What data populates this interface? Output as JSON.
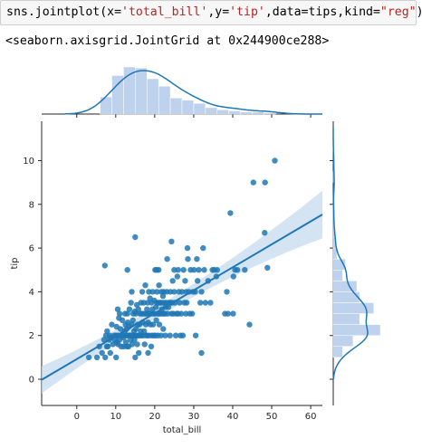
{
  "cell": {
    "code": {
      "fn": "sns.jointplot(x=",
      "x_val": "'total_bill'",
      "sep1": ",y=",
      "y_val": "'tip'",
      "sep2": ",data=tips,kind=",
      "kind_val": "\"reg\"",
      "close": ")"
    },
    "output": "<seaborn.axisgrid.JointGrid at 0x244900ce288>"
  },
  "colors": {
    "series": "#1f77b4",
    "hist_fill": "#aec7e8",
    "band": "#c6dbef"
  },
  "chart_data": {
    "type": "scatter",
    "xlabel": "total_bill",
    "ylabel": "tip",
    "xlim": [
      -9,
      63
    ],
    "ylim": [
      -1.2,
      11.8
    ],
    "xticks": [
      0,
      10,
      20,
      30,
      40,
      50,
      60
    ],
    "yticks": [
      0,
      2,
      4,
      6,
      8,
      10
    ],
    "regression": {
      "intercept": 0.92,
      "slope": 0.105
    },
    "points": [
      [
        3.1,
        1.0
      ],
      [
        5.2,
        1.0
      ],
      [
        5.8,
        1.5
      ],
      [
        6.5,
        1.2
      ],
      [
        7.0,
        1.8
      ],
      [
        7.3,
        1.0
      ],
      [
        7.5,
        2.0
      ],
      [
        7.7,
        1.5
      ],
      [
        7.8,
        2.2
      ],
      [
        8.0,
        1.5
      ],
      [
        8.3,
        1.8
      ],
      [
        8.5,
        2.0
      ],
      [
        8.6,
        1.2
      ],
      [
        8.8,
        1.9
      ],
      [
        9.0,
        2.5
      ],
      [
        9.3,
        1.6
      ],
      [
        9.6,
        2.0
      ],
      [
        9.8,
        1.8
      ],
      [
        10.0,
        2.0
      ],
      [
        10.1,
        1.0
      ],
      [
        10.2,
        2.4
      ],
      [
        10.3,
        1.7
      ],
      [
        10.4,
        2.0
      ],
      [
        10.5,
        3.2
      ],
      [
        10.6,
        1.6
      ],
      [
        10.7,
        2.0
      ],
      [
        10.8,
        2.8
      ],
      [
        11.0,
        3.0
      ],
      [
        11.0,
        1.8
      ],
      [
        11.2,
        2.3
      ],
      [
        11.4,
        1.5
      ],
      [
        11.5,
        2.0
      ],
      [
        11.7,
        2.7
      ],
      [
        11.9,
        1.9
      ],
      [
        12.0,
        2.0
      ],
      [
        12.1,
        1.5
      ],
      [
        12.3,
        2.2
      ],
      [
        12.4,
        3.0
      ],
      [
        12.5,
        2.5
      ],
      [
        12.6,
        1.7
      ],
      [
        12.7,
        2.0
      ],
      [
        12.8,
        2.3
      ],
      [
        12.9,
        1.5
      ],
      [
        13.0,
        2.0
      ],
      [
        13.0,
        3.0
      ],
      [
        13.1,
        2.6
      ],
      [
        13.2,
        2.0
      ],
      [
        13.3,
        1.5
      ],
      [
        13.4,
        2.4
      ],
      [
        13.5,
        3.2
      ],
      [
        13.6,
        2.0
      ],
      [
        13.7,
        2.0
      ],
      [
        13.8,
        1.8
      ],
      [
        13.9,
        3.5
      ],
      [
        14.0,
        2.0
      ],
      [
        14.1,
        2.5
      ],
      [
        14.2,
        1.6
      ],
      [
        14.3,
        2.0
      ],
      [
        14.4,
        2.7
      ],
      [
        14.5,
        3.0
      ],
      [
        14.6,
        2.0
      ],
      [
        14.7,
        2.2
      ],
      [
        14.8,
        1.8
      ],
      [
        14.9,
        3.1
      ],
      [
        15.0,
        2.0
      ],
      [
        15.0,
        1.0
      ],
      [
        15.1,
        3.0
      ],
      [
        15.2,
        2.3
      ],
      [
        15.3,
        2.0
      ],
      [
        15.4,
        3.4
      ],
      [
        15.5,
        1.6
      ],
      [
        15.6,
        2.5
      ],
      [
        15.7,
        2.0
      ],
      [
        15.8,
        3.2
      ],
      [
        15.9,
        1.2
      ],
      [
        16.0,
        2.0
      ],
      [
        16.1,
        2.5
      ],
      [
        16.2,
        3.0
      ],
      [
        16.3,
        2.0
      ],
      [
        16.4,
        2.2
      ],
      [
        16.5,
        3.5
      ],
      [
        16.6,
        3.0
      ],
      [
        16.7,
        2.0
      ],
      [
        16.8,
        4.0
      ],
      [
        16.9,
        2.6
      ],
      [
        17.0,
        3.0
      ],
      [
        17.1,
        2.0
      ],
      [
        17.2,
        3.5
      ],
      [
        17.3,
        2.2
      ],
      [
        17.4,
        1.6
      ],
      [
        17.5,
        3.0
      ],
      [
        17.6,
        4.3
      ],
      [
        17.7,
        2.5
      ],
      [
        17.8,
        3.0
      ],
      [
        17.9,
        2.0
      ],
      [
        18.0,
        3.2
      ],
      [
        18.1,
        2.0
      ],
      [
        18.2,
        3.5
      ],
      [
        18.3,
        2.6
      ],
      [
        18.4,
        3.0
      ],
      [
        18.5,
        4.0
      ],
      [
        18.6,
        2.0
      ],
      [
        18.7,
        3.0
      ],
      [
        18.8,
        3.7
      ],
      [
        18.9,
        2.5
      ],
      [
        19.0,
        3.0
      ],
      [
        19.1,
        1.5
      ],
      [
        19.2,
        3.5
      ],
      [
        19.3,
        2.0
      ],
      [
        19.4,
        3.2
      ],
      [
        19.5,
        4.0
      ],
      [
        19.6,
        2.5
      ],
      [
        19.7,
        3.0
      ],
      [
        19.8,
        2.0
      ],
      [
        19.9,
        3.6
      ],
      [
        20.0,
        3.0
      ],
      [
        20.1,
        5.0
      ],
      [
        20.2,
        2.0
      ],
      [
        20.3,
        3.3
      ],
      [
        20.4,
        2.7
      ],
      [
        20.5,
        3.5
      ],
      [
        20.6,
        4.0
      ],
      [
        20.7,
        3.0
      ],
      [
        20.8,
        2.0
      ],
      [
        20.9,
        3.5
      ],
      [
        21.0,
        3.0
      ],
      [
        21.0,
        5.0
      ],
      [
        21.1,
        4.3
      ],
      [
        21.2,
        2.5
      ],
      [
        21.3,
        3.5
      ],
      [
        21.4,
        3.0
      ],
      [
        21.5,
        3.5
      ],
      [
        21.6,
        2.0
      ],
      [
        21.7,
        4.0
      ],
      [
        21.8,
        3.2
      ],
      [
        21.9,
        3.0
      ],
      [
        22.0,
        3.5
      ],
      [
        22.1,
        3.8
      ],
      [
        22.2,
        2.3
      ],
      [
        22.3,
        4.0
      ],
      [
        22.4,
        3.0
      ],
      [
        22.5,
        3.5
      ],
      [
        22.6,
        3.0
      ],
      [
        22.7,
        2.0
      ],
      [
        22.8,
        3.3
      ],
      [
        23.0,
        3.5
      ],
      [
        23.1,
        4.0
      ],
      [
        23.2,
        5.5
      ],
      [
        23.3,
        3.0
      ],
      [
        23.5,
        3.3
      ],
      [
        23.7,
        3.5
      ],
      [
        23.9,
        2.0
      ],
      [
        24.0,
        4.0
      ],
      [
        24.1,
        3.5
      ],
      [
        24.3,
        3.0
      ],
      [
        24.5,
        3.5
      ],
      [
        24.6,
        4.5
      ],
      [
        24.8,
        3.0
      ],
      [
        25.0,
        4.0
      ],
      [
        25.0,
        5.0
      ],
      [
        25.2,
        3.5
      ],
      [
        25.4,
        2.0
      ],
      [
        25.6,
        3.0
      ],
      [
        25.8,
        4.7
      ],
      [
        26.0,
        3.0
      ],
      [
        26.0,
        5.0
      ],
      [
        26.2,
        4.0
      ],
      [
        26.4,
        3.5
      ],
      [
        26.6,
        2.0
      ],
      [
        26.8,
        3.0
      ],
      [
        27.0,
        4.0
      ],
      [
        27.2,
        2.0
      ],
      [
        27.4,
        5.0
      ],
      [
        27.6,
        3.5
      ],
      [
        27.8,
        4.5
      ],
      [
        28.0,
        3.0
      ],
      [
        28.1,
        4.0
      ],
      [
        28.2,
        3.5
      ],
      [
        28.4,
        6.0
      ],
      [
        28.5,
        5.5
      ],
      [
        28.8,
        4.0
      ],
      [
        29.0,
        3.0
      ],
      [
        29.2,
        5.0
      ],
      [
        29.6,
        3.0
      ],
      [
        29.8,
        4.0
      ],
      [
        30.1,
        5.0
      ],
      [
        30.4,
        4.0
      ],
      [
        30.5,
        2.0
      ],
      [
        30.8,
        5.5
      ],
      [
        31.0,
        4.5
      ],
      [
        31.3,
        5.0
      ],
      [
        31.7,
        3.5
      ],
      [
        32.0,
        4.0
      ],
      [
        32.4,
        6.0
      ],
      [
        32.7,
        5.0
      ],
      [
        33.0,
        3.5
      ],
      [
        33.7,
        4.5
      ],
      [
        34.3,
        3.5
      ],
      [
        34.8,
        5.0
      ],
      [
        35.3,
        5.0
      ],
      [
        35.8,
        4.7
      ],
      [
        36.0,
        5.0
      ],
      [
        38.0,
        3.0
      ],
      [
        38.5,
        4.0
      ],
      [
        38.8,
        3.0
      ],
      [
        39.4,
        7.6
      ],
      [
        40.1,
        3.0
      ],
      [
        40.2,
        4.7
      ],
      [
        40.6,
        5.0
      ],
      [
        41.2,
        5.0
      ],
      [
        43.1,
        5.0
      ],
      [
        44.3,
        2.5
      ],
      [
        45.3,
        9.0
      ],
      [
        48.2,
        6.7
      ],
      [
        48.3,
        9.0
      ],
      [
        48.9,
        5.1
      ],
      [
        50.8,
        10.0
      ],
      [
        7.2,
        5.2
      ],
      [
        13.0,
        5.0
      ],
      [
        18.3,
        1.2
      ],
      [
        14.1,
        4.0
      ],
      [
        20.5,
        5.0
      ],
      [
        32.0,
        1.2
      ],
      [
        15.0,
        6.5
      ],
      [
        24.3,
        6.3
      ]
    ],
    "x_hist": {
      "edges": [
        6,
        9,
        12,
        15,
        18,
        21,
        24,
        27,
        30,
        33,
        36,
        39,
        42,
        45,
        48,
        51
      ],
      "counts": [
        16,
        36,
        44,
        43,
        33,
        26,
        15,
        13,
        10,
        6,
        4,
        3,
        2,
        2,
        1
      ]
    },
    "y_hist": {
      "edges": [
        1.0,
        1.5,
        2.0,
        2.5,
        3.0,
        3.5,
        4.0,
        4.5,
        5.0,
        5.5,
        6.0,
        6.5,
        7.0,
        7.5,
        8.0,
        8.5,
        9.0,
        9.5,
        10.0
      ],
      "counts": [
        10,
        21,
        50,
        28,
        43,
        28,
        25,
        10,
        13,
        4,
        3,
        2,
        1,
        1,
        0,
        0,
        1,
        0
      ]
    }
  }
}
